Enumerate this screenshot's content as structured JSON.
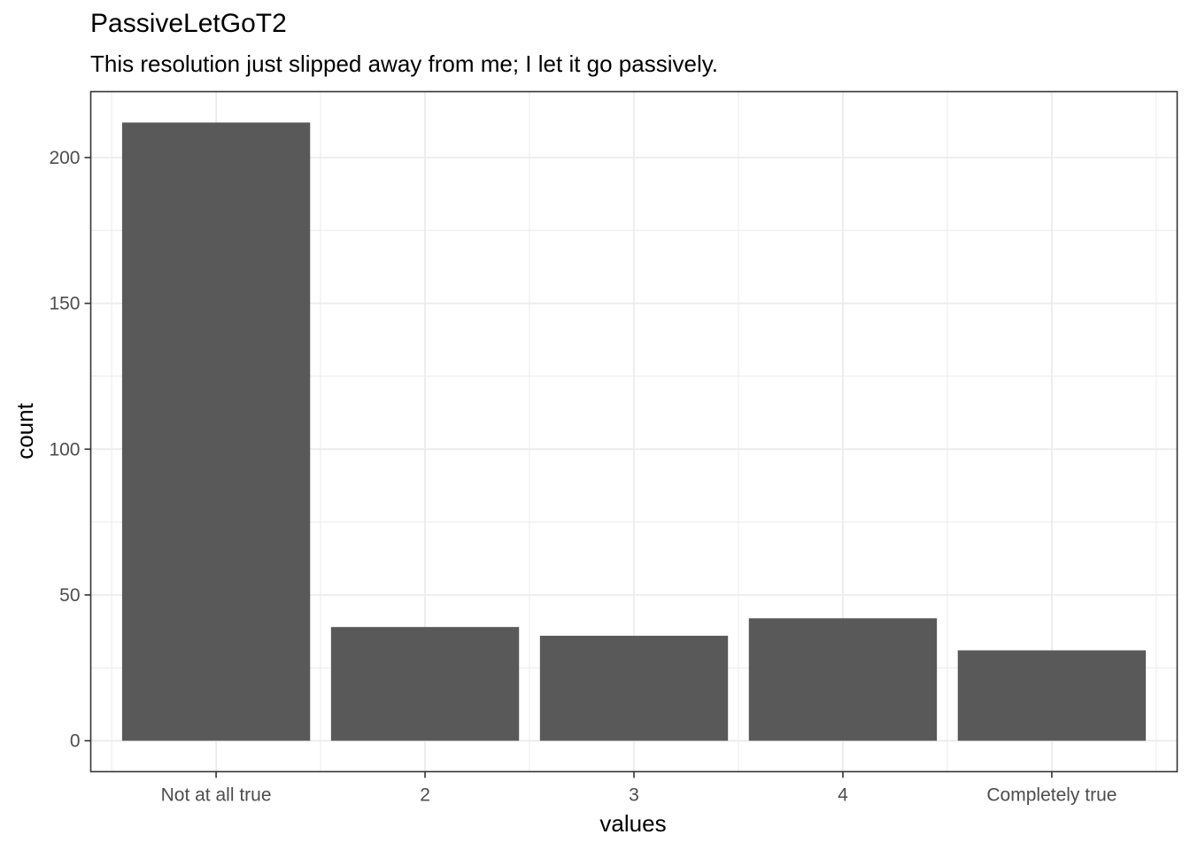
{
  "chart_data": {
    "type": "bar",
    "title": "PassiveLetGoT2",
    "subtitle": "This resolution just slipped away from me; I let it go passively.",
    "xlabel": "values",
    "ylabel": "count",
    "categories": [
      "Not at all true",
      "2",
      "3",
      "4",
      "Completely true"
    ],
    "values": [
      212,
      39,
      36,
      42,
      31
    ],
    "ylim": [
      -10.6,
      222.6
    ],
    "yticks": [
      0,
      50,
      100,
      150,
      200
    ],
    "bar_color": "#595959",
    "grid": true,
    "grid_color": "#ebebeb",
    "legend": "none"
  }
}
